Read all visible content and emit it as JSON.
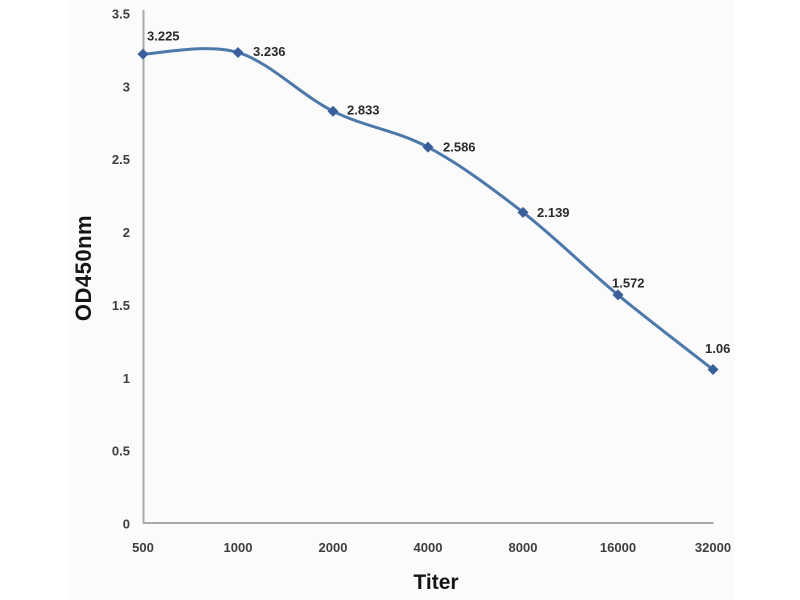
{
  "chart_data": {
    "type": "line",
    "title": "",
    "xlabel": "Titer",
    "ylabel": "OD450nm",
    "x_tick_labels": [
      "500",
      "1000",
      "2000",
      "4000",
      "8000",
      "16000",
      "32000"
    ],
    "y_tick_labels": [
      "3.5",
      "3",
      "2.5",
      "2",
      "1.5",
      "1",
      "0.5",
      "0"
    ],
    "y_tick_values": [
      3.5,
      3,
      2.5,
      2,
      1.5,
      1,
      0.5,
      0
    ],
    "ylim": [
      0,
      3.5
    ],
    "x_axis_type": "doubling-dilution, equal spacing per 2x step",
    "grid": false,
    "legend": false,
    "smooth_line": true,
    "series": [
      {
        "name": "OD450nm",
        "x": [
          500,
          1000,
          2000,
          4000,
          8000,
          16000,
          32000
        ],
        "values": [
          3.225,
          3.236,
          2.833,
          2.586,
          2.139,
          1.572,
          1.06
        ],
        "point_labels": [
          "3.225",
          "3.236",
          "2.833",
          "2.586",
          "2.139",
          "1.572",
          "1.06"
        ],
        "line_color": "#4d78aa",
        "marker_color": "#3a5e99",
        "marker_shape": "diamond"
      }
    ]
  },
  "style": {
    "page_background": "#ffffff",
    "panel_background": "#fbfbfb",
    "axis_line_color": "#a9a9a9",
    "tick_label_color": "#3d3d3d",
    "data_label_color": "#2b2b2b",
    "axis_title_color": "#141414"
  }
}
